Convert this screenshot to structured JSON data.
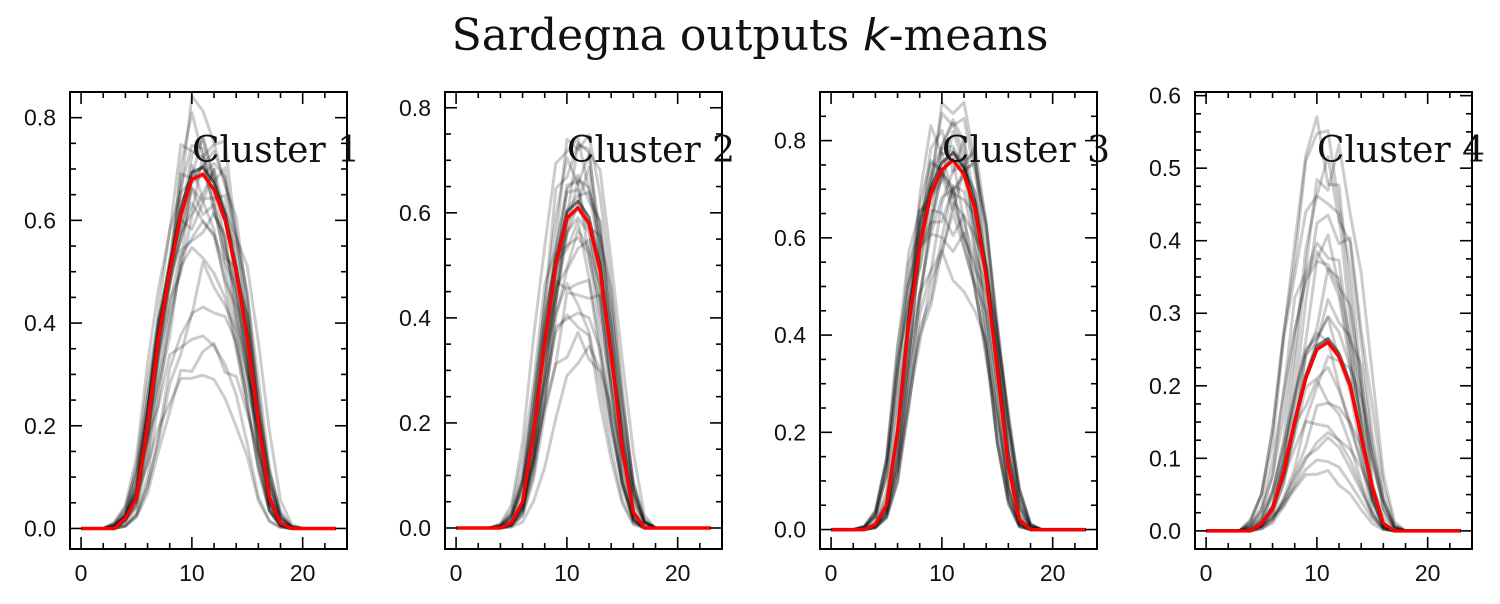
{
  "title_prefix": "Sardegna outputs ",
  "title_var": "k",
  "title_suffix": "-means",
  "colors": {
    "mean": "#ff0000",
    "samples": "#000000"
  },
  "chart_data": [
    {
      "type": "line",
      "panel_label": "Cluster 1",
      "xlim": [
        -1,
        24
      ],
      "ylim": [
        -0.04,
        0.85
      ],
      "xticks": [
        0,
        10,
        20
      ],
      "yticks": [
        0.0,
        0.2,
        0.4,
        0.6,
        0.8
      ],
      "ytick_labels": [
        "0.0",
        "0.2",
        "0.4",
        "0.6",
        "0.8"
      ],
      "x": [
        0,
        1,
        2,
        3,
        4,
        5,
        6,
        7,
        8,
        9,
        10,
        11,
        12,
        13,
        14,
        15,
        16,
        17,
        18,
        19,
        20,
        21,
        22,
        23
      ],
      "series": [
        {
          "role": "cluster-mean",
          "values": [
            0,
            0,
            0,
            0,
            0.02,
            0.06,
            0.2,
            0.37,
            0.5,
            0.61,
            0.68,
            0.69,
            0.66,
            0.6,
            0.5,
            0.37,
            0.21,
            0.06,
            0.01,
            0,
            0,
            0,
            0,
            0
          ]
        }
      ],
      "sample_peaks": [
        0.8,
        0.78,
        0.76,
        0.75,
        0.74,
        0.73,
        0.72,
        0.71,
        0.7,
        0.69,
        0.68,
        0.67,
        0.66,
        0.65,
        0.64,
        0.62,
        0.6,
        0.57,
        0.53,
        0.49,
        0.45,
        0.4,
        0.36,
        0.32
      ],
      "grid": false
    },
    {
      "type": "line",
      "panel_label": "Cluster 2",
      "xlim": [
        -1,
        24
      ],
      "ylim": [
        -0.04,
        0.83
      ],
      "xticks": [
        0,
        10,
        20
      ],
      "yticks": [
        0.0,
        0.2,
        0.4,
        0.6,
        0.8
      ],
      "ytick_labels": [
        "0.0",
        "0.2",
        "0.4",
        "0.6",
        "0.8"
      ],
      "x": [
        0,
        1,
        2,
        3,
        4,
        5,
        6,
        7,
        8,
        9,
        10,
        11,
        12,
        13,
        14,
        15,
        16,
        17,
        18,
        19,
        20,
        21,
        22,
        23
      ],
      "series": [
        {
          "role": "cluster-mean",
          "values": [
            0,
            0,
            0,
            0,
            0,
            0.01,
            0.05,
            0.18,
            0.35,
            0.5,
            0.59,
            0.61,
            0.58,
            0.49,
            0.33,
            0.15,
            0.03,
            0,
            0,
            0,
            0,
            0,
            0,
            0
          ]
        }
      ],
      "sample_peaks": [
        0.78,
        0.76,
        0.74,
        0.72,
        0.7,
        0.68,
        0.66,
        0.65,
        0.64,
        0.63,
        0.62,
        0.61,
        0.6,
        0.58,
        0.56,
        0.54,
        0.52,
        0.5,
        0.48,
        0.45,
        0.42,
        0.4,
        0.36,
        0.33
      ],
      "grid": false
    },
    {
      "type": "line",
      "panel_label": "Cluster 3",
      "xlim": [
        -1,
        24
      ],
      "ylim": [
        -0.04,
        0.9
      ],
      "xticks": [
        0,
        10,
        20
      ],
      "yticks": [
        0.0,
        0.2,
        0.4,
        0.6,
        0.8
      ],
      "ytick_labels": [
        "0.0",
        "0.2",
        "0.4",
        "0.6",
        "0.8"
      ],
      "x": [
        0,
        1,
        2,
        3,
        4,
        5,
        6,
        7,
        8,
        9,
        10,
        11,
        12,
        13,
        14,
        15,
        16,
        17,
        18,
        19,
        20,
        21,
        22,
        23
      ],
      "series": [
        {
          "role": "cluster-mean",
          "values": [
            0,
            0,
            0,
            0,
            0.01,
            0.05,
            0.2,
            0.42,
            0.58,
            0.69,
            0.74,
            0.76,
            0.73,
            0.66,
            0.52,
            0.33,
            0.13,
            0.02,
            0,
            0,
            0,
            0,
            0,
            0
          ]
        }
      ],
      "sample_peaks": [
        0.86,
        0.85,
        0.84,
        0.83,
        0.82,
        0.81,
        0.8,
        0.79,
        0.78,
        0.77,
        0.76,
        0.75,
        0.74,
        0.73,
        0.72,
        0.71,
        0.7,
        0.69,
        0.68,
        0.66,
        0.64,
        0.62,
        0.58,
        0.55
      ],
      "grid": false
    },
    {
      "type": "line",
      "panel_label": "Cluster 4",
      "xlim": [
        -1,
        24
      ],
      "ylim": [
        -0.025,
        0.605
      ],
      "xticks": [
        0,
        10,
        20
      ],
      "yticks": [
        0.0,
        0.1,
        0.2,
        0.3,
        0.4,
        0.5,
        0.6
      ],
      "ytick_labels": [
        "0.0",
        "0.1",
        "0.2",
        "0.3",
        "0.4",
        "0.5",
        "0.6"
      ],
      "x": [
        0,
        1,
        2,
        3,
        4,
        5,
        6,
        7,
        8,
        9,
        10,
        11,
        12,
        13,
        14,
        15,
        16,
        17,
        18,
        19,
        20,
        21,
        22,
        23
      ],
      "series": [
        {
          "role": "cluster-mean",
          "values": [
            0,
            0,
            0,
            0,
            0,
            0.01,
            0.03,
            0.08,
            0.15,
            0.21,
            0.25,
            0.26,
            0.24,
            0.2,
            0.13,
            0.06,
            0.01,
            0,
            0,
            0,
            0,
            0,
            0,
            0
          ]
        }
      ],
      "sample_peaks": [
        0.57,
        0.55,
        0.52,
        0.5,
        0.48,
        0.45,
        0.42,
        0.4,
        0.38,
        0.36,
        0.34,
        0.32,
        0.3,
        0.28,
        0.26,
        0.24,
        0.22,
        0.2,
        0.18,
        0.16,
        0.14,
        0.12,
        0.1,
        0.08
      ],
      "grid": false
    }
  ]
}
